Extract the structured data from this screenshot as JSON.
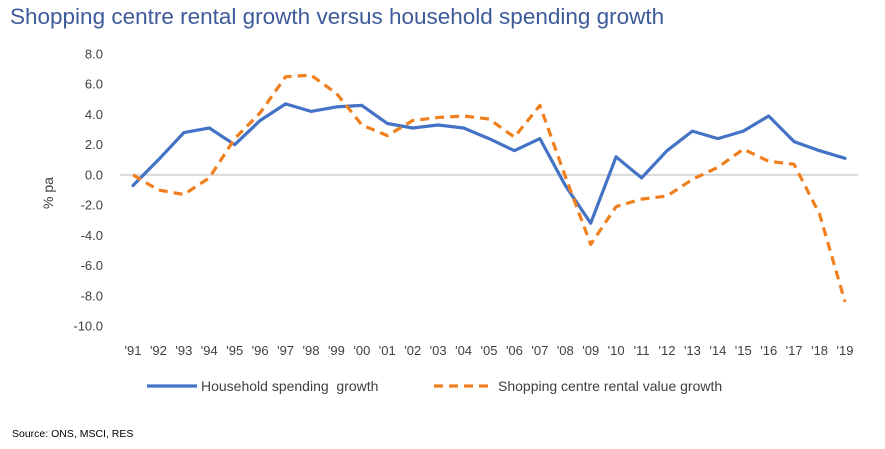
{
  "chart_data": {
    "type": "line",
    "title": "Shopping centre rental growth versus household spending growth",
    "ylabel": "% pa",
    "xlabel": "",
    "ylim": [
      -10,
      8
    ],
    "yticks": [
      "8.0",
      "6.0",
      "4.0",
      "2.0",
      "0.0",
      "-2.0",
      "-4.0",
      "-6.0",
      "-8.0",
      "-10.0"
    ],
    "categories": [
      "'91",
      "'92",
      "'93",
      "'94",
      "'95",
      "'96",
      "'97",
      "'98",
      "'99",
      "'00",
      "'01",
      "'02",
      "'03",
      "'04",
      "'05",
      "'06",
      "'07",
      "'08",
      "'09",
      "'10",
      "'11",
      "'12",
      "'13",
      "'14",
      "'15",
      "'16",
      "'17",
      "'18",
      "'19"
    ],
    "grid": false,
    "legend_position": "bottom",
    "series": [
      {
        "name": "Household spending  growth",
        "color": "#4472c4",
        "style": "solid",
        "values": [
          -0.7,
          1.0,
          2.8,
          3.1,
          2.0,
          3.6,
          4.7,
          4.2,
          4.5,
          4.6,
          3.4,
          3.1,
          3.3,
          3.1,
          2.4,
          1.6,
          2.4,
          -0.7,
          -3.2,
          1.2,
          -0.2,
          1.6,
          2.9,
          2.4,
          2.9,
          3.9,
          2.2,
          1.6,
          1.1
        ]
      },
      {
        "name": "Shopping centre rental value growth",
        "color": "#f07f1e",
        "style": "dashed",
        "values": [
          0.0,
          -1.0,
          -1.3,
          -0.2,
          2.4,
          4.1,
          6.5,
          6.6,
          5.4,
          3.3,
          2.6,
          3.6,
          3.8,
          3.9,
          3.7,
          2.5,
          4.6,
          -0.1,
          -4.6,
          -2.1,
          -1.6,
          -1.4,
          -0.3,
          0.5,
          1.7,
          0.9,
          0.7,
          -2.6,
          -8.4
        ]
      }
    ]
  },
  "source": "Source: ONS, MSCI, RES"
}
